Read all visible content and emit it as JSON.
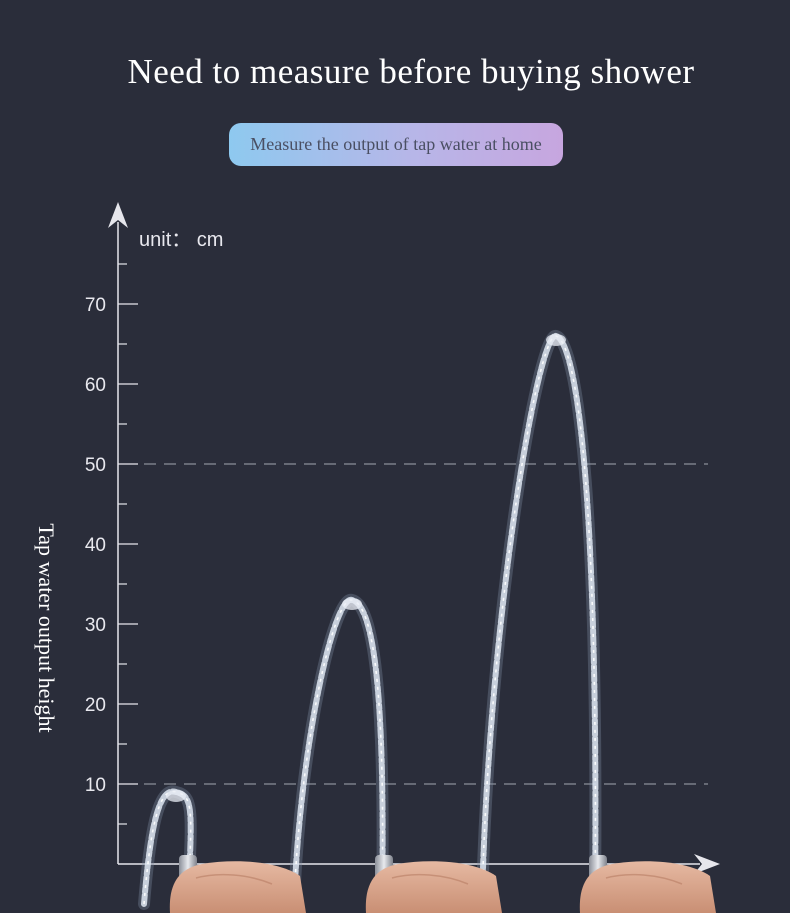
{
  "header": {
    "title": "Need to measure before buying shower",
    "subtitle": "Measure the output of tap water at home"
  },
  "chart_data": {
    "type": "bar",
    "unit_label": "unit： cm",
    "ylabel": "Tap water output height",
    "ylim": [
      0,
      80
    ],
    "yticks": [
      10,
      20,
      30,
      40,
      50,
      60,
      70
    ],
    "dashed_reference_lines": [
      10,
      50
    ],
    "series_values": [
      9,
      33,
      66
    ],
    "grid": false
  },
  "colors": {
    "background": "#2a2d3a",
    "axis": "#e6e6ec",
    "dashed": "#8a8e99",
    "water": "#dfe7f2",
    "hand": "#d8a58c"
  }
}
